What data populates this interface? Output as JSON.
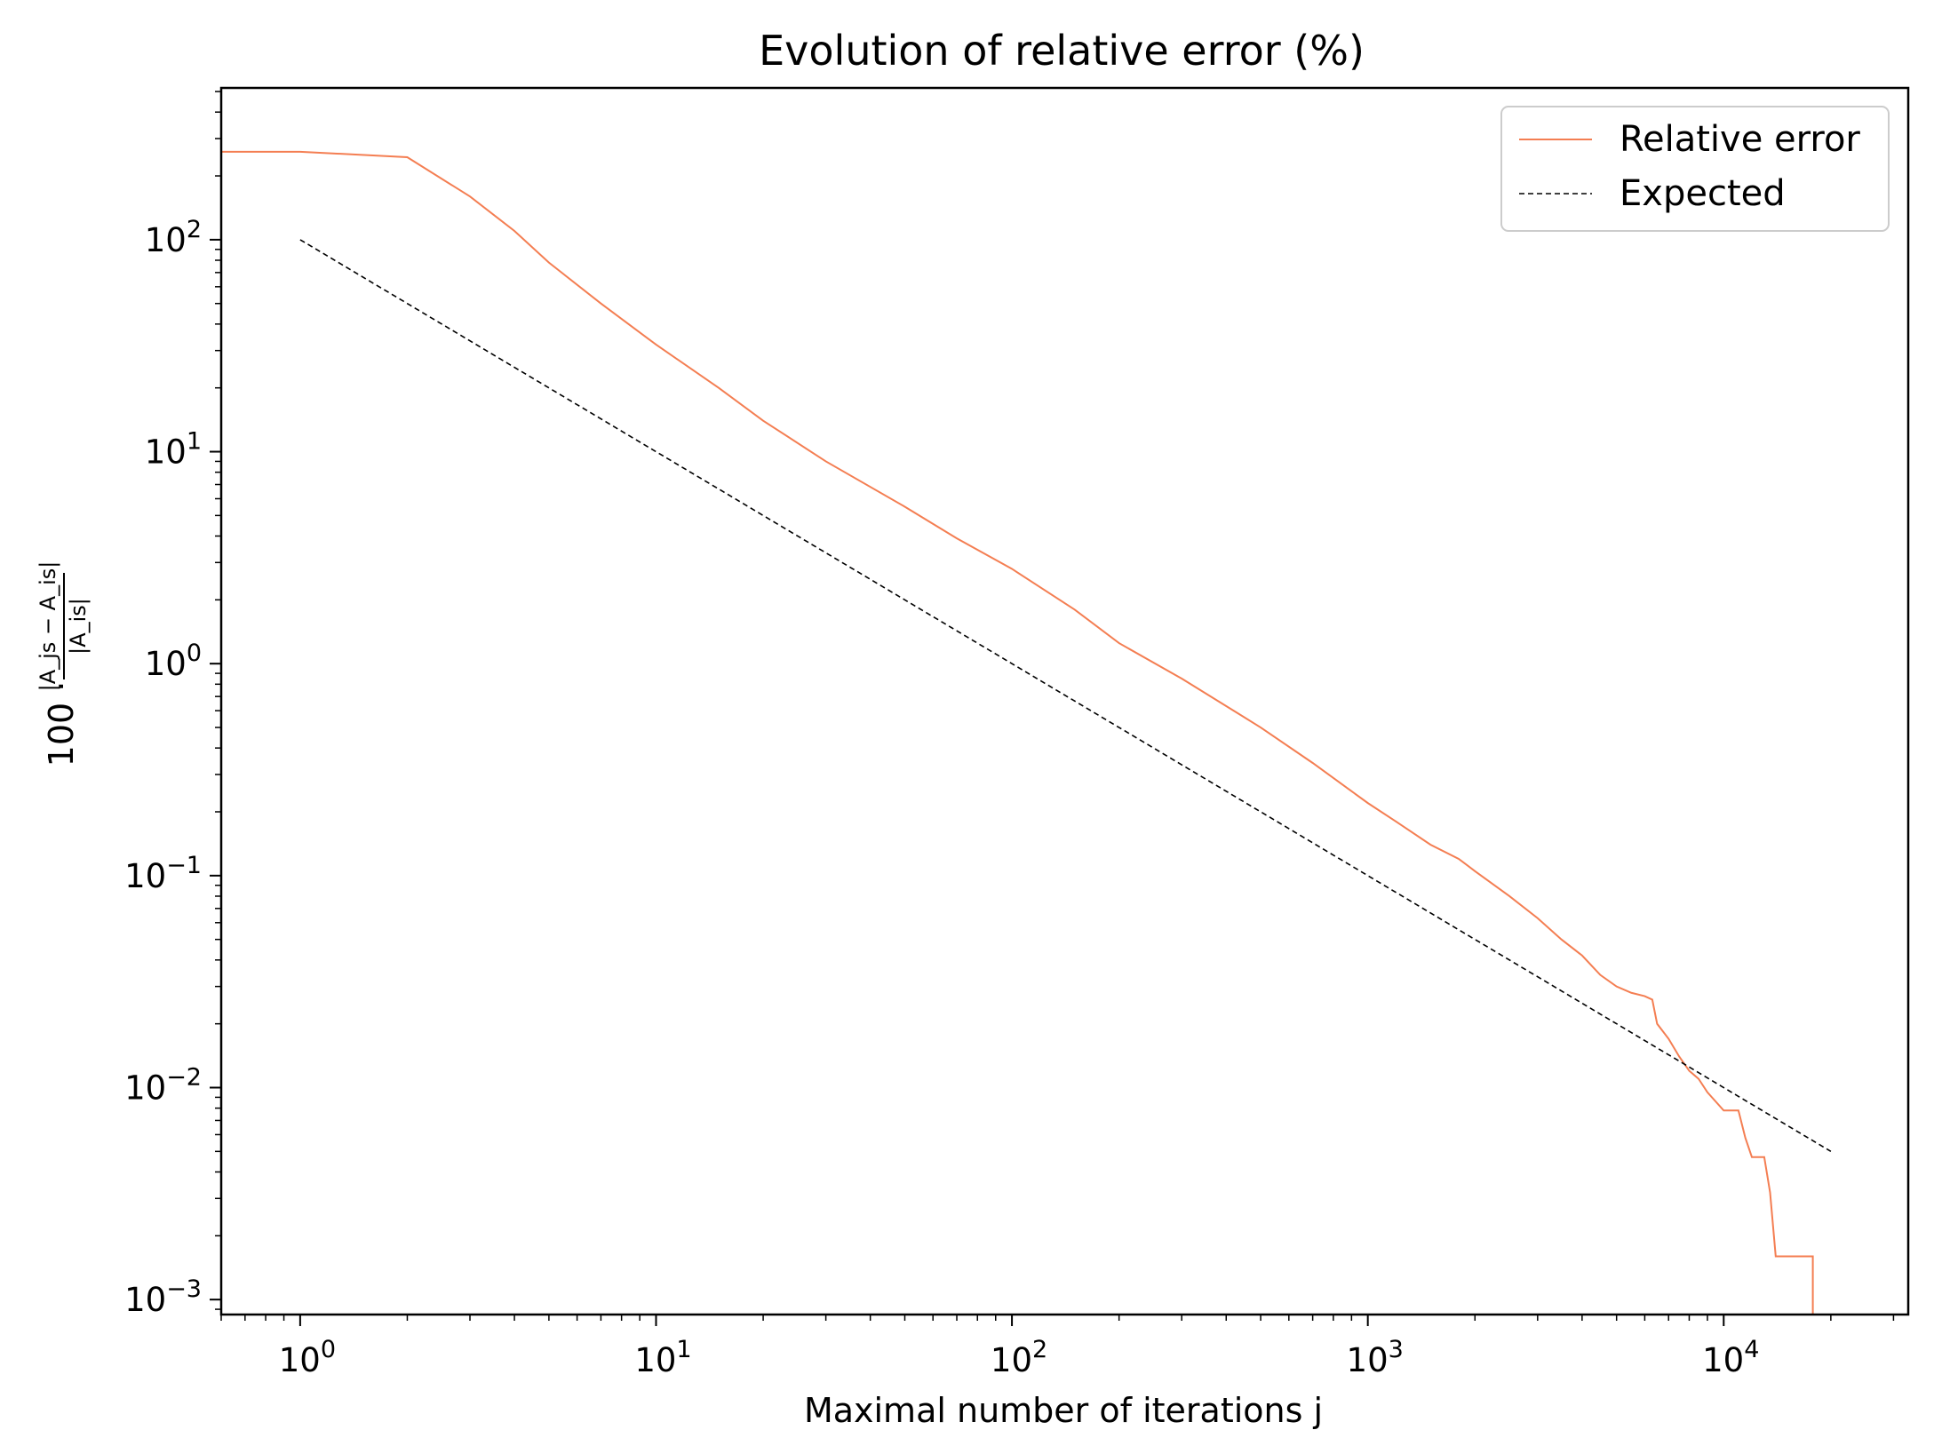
{
  "chart_data": {
    "type": "line",
    "title": "Evolution of relative error (%)",
    "xlabel": "Maximal number of iterations j",
    "ylabel_prefix": "100 ·",
    "ylabel_numerator": "|A_js − A_is|",
    "ylabel_denominator": "|A_is|",
    "x_scale": "log",
    "y_scale": "log",
    "xlim": [
      0.6,
      33000
    ],
    "ylim": [
      0.00085,
      520
    ],
    "x_ticks": [
      {
        "value": 1,
        "base": "10",
        "exp": "0"
      },
      {
        "value": 10,
        "base": "10",
        "exp": "1"
      },
      {
        "value": 100,
        "base": "10",
        "exp": "2"
      },
      {
        "value": 1000,
        "base": "10",
        "exp": "3"
      },
      {
        "value": 10000,
        "base": "10",
        "exp": "4"
      }
    ],
    "y_ticks": [
      {
        "value": 0.001,
        "base": "10",
        "exp": "−3"
      },
      {
        "value": 0.01,
        "base": "10",
        "exp": "−2"
      },
      {
        "value": 0.1,
        "base": "10",
        "exp": "−1"
      },
      {
        "value": 1,
        "base": "10",
        "exp": "0"
      },
      {
        "value": 10,
        "base": "10",
        "exp": "1"
      },
      {
        "value": 100,
        "base": "10",
        "exp": "2"
      }
    ],
    "grid": false,
    "legend_position": "top-right",
    "series": [
      {
        "name": "Relative error",
        "color": "#f47e52",
        "style": "solid",
        "x": [
          0.6,
          1,
          2,
          3,
          4,
          5,
          7,
          10,
          15,
          20,
          30,
          50,
          70,
          100,
          150,
          200,
          300,
          500,
          700,
          1000,
          1200,
          1500,
          1800,
          2000,
          2500,
          3000,
          3500,
          4000,
          4500,
          5000,
          5500,
          6000,
          6300,
          6500,
          7000,
          7500,
          8000,
          8500,
          9000,
          10000,
          11000,
          11500,
          12000,
          13000,
          13500,
          14000,
          17000,
          17800,
          17800
        ],
        "y": [
          260,
          260,
          245,
          160,
          110,
          78,
          50,
          32,
          20,
          14,
          9,
          5.5,
          3.9,
          2.8,
          1.8,
          1.25,
          0.85,
          0.5,
          0.34,
          0.22,
          0.18,
          0.14,
          0.12,
          0.105,
          0.08,
          0.063,
          0.05,
          0.042,
          0.034,
          0.03,
          0.028,
          0.027,
          0.026,
          0.02,
          0.017,
          0.014,
          0.012,
          0.011,
          0.0095,
          0.0078,
          0.0078,
          0.0058,
          0.0047,
          0.0047,
          0.0032,
          0.0016,
          0.0016,
          0.0016,
          0.00085
        ]
      },
      {
        "name": "Expected",
        "color": "#000000",
        "style": "dashed",
        "x": [
          1,
          20000
        ],
        "y": [
          100,
          0.005
        ]
      }
    ]
  }
}
